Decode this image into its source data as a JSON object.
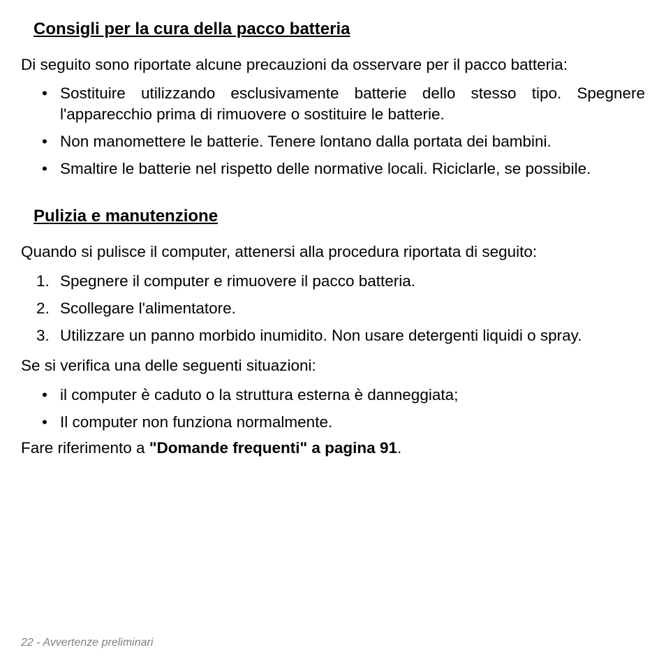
{
  "section1": {
    "title": "Consigli per la cura della pacco batteria",
    "intro": "Di seguito sono riportate alcune precauzioni da osservare per il pacco batteria:",
    "bullets": [
      "Sostituire utilizzando esclusivamente batterie dello stesso tipo. Spegnere l'apparecchio prima di rimuovere o sostituire le batterie.",
      "Non manomettere le batterie. Tenere lontano dalla portata dei bambini.",
      "Smaltire le batterie nel rispetto delle normative locali. Riciclarle, se possibile."
    ]
  },
  "section2": {
    "title": "Pulizia e manutenzione",
    "intro": "Quando si pulisce il computer, attenersi alla procedura riportata di seguito:",
    "steps": [
      "Spegnere il computer e rimuovere il pacco batteria.",
      "Scollegare l'alimentatore.",
      "Utilizzare un panno morbido inumidito. Non usare detergenti liquidi o spray."
    ],
    "situations_intro": "Se si verifica una delle seguenti situazioni:",
    "situations": [
      "il computer è caduto o la struttura esterna è danneggiata;",
      "Il computer non funziona normalmente."
    ],
    "reference_prefix": "Fare riferimento a ",
    "reference_bold": "\"Domande frequenti\" a pagina 91",
    "reference_suffix": "."
  },
  "footer": {
    "page_num": "22",
    "separator": " - ",
    "section_name": "Avvertenze preliminari"
  }
}
